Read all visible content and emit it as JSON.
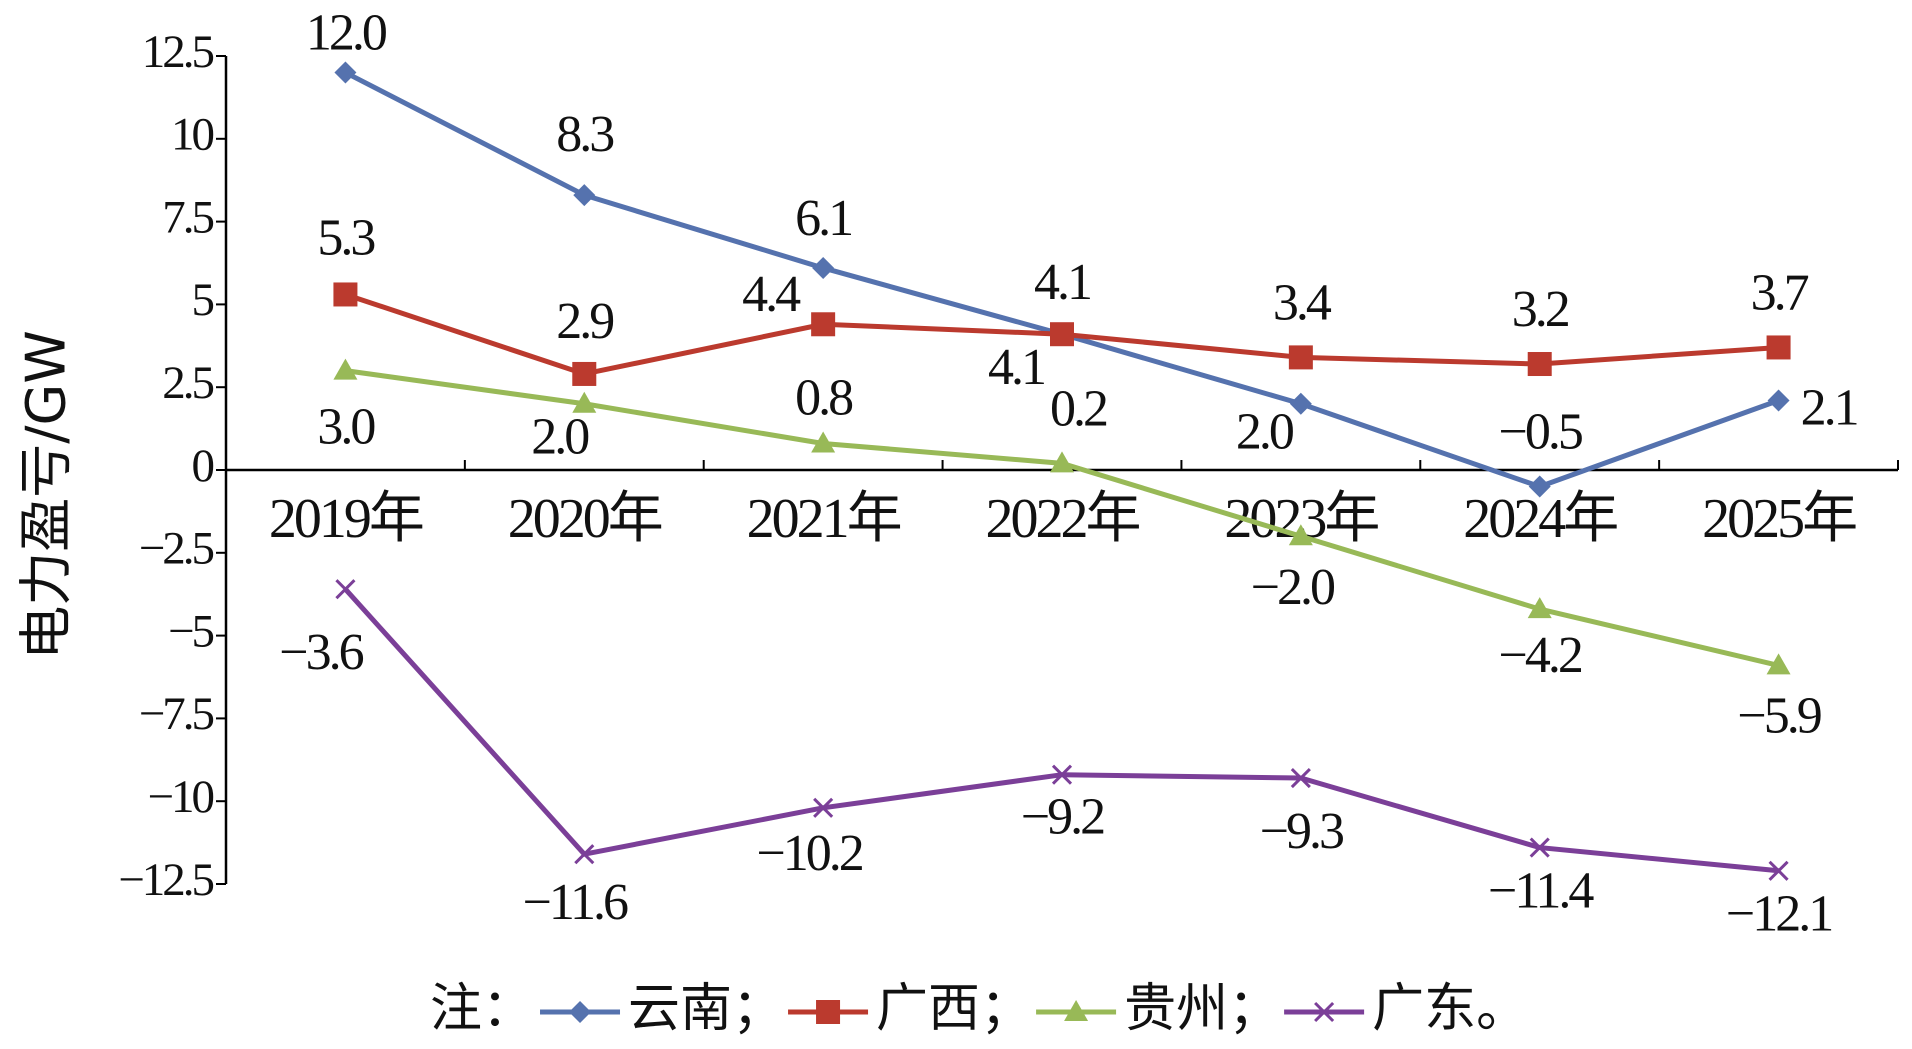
{
  "chart_data": {
    "type": "line",
    "y_label": "电力盈亏/GW",
    "categories": [
      "2019年",
      "2020年",
      "2021年",
      "2022年",
      "2023年",
      "2024年",
      "2025年"
    ],
    "series": [
      {
        "name": "云南",
        "color": "#5572ae",
        "marker": "diamond",
        "values": [
          12.0,
          8.3,
          6.1,
          4.1,
          2.0,
          -0.5,
          2.1
        ],
        "value_labels": [
          "12.0",
          "8.3",
          "6.1",
          "4.1",
          "2.0",
          "−0.5",
          "2.1"
        ]
      },
      {
        "name": "广西",
        "color": "#bb3a2e",
        "marker": "square",
        "values": [
          5.3,
          2.9,
          4.4,
          4.1,
          3.4,
          3.2,
          3.7
        ],
        "value_labels": [
          "5.3",
          "2.9",
          "4.4",
          "4.1",
          "3.4",
          "3.2",
          "3.7"
        ]
      },
      {
        "name": "贵州",
        "color": "#98b957",
        "marker": "triangle",
        "values": [
          3.0,
          2.0,
          0.8,
          0.2,
          -2.0,
          -4.2,
          -5.9
        ],
        "value_labels": [
          "3.0",
          "2.0",
          "0.8",
          "0.2",
          "−2.0",
          "−4.2",
          "−5.9"
        ]
      },
      {
        "name": "广东",
        "color": "#7b3f98",
        "marker": "x",
        "values": [
          -3.6,
          -11.6,
          -10.2,
          -9.2,
          -9.3,
          -11.4,
          -12.1
        ],
        "value_labels": [
          "−3.6",
          "−11.6",
          "−10.2",
          "−9.2",
          "−9.3",
          "−11.4",
          "−12.1"
        ]
      }
    ],
    "ylim": [
      -12.5,
      12.5
    ],
    "yticks": [
      {
        "value": -12.5,
        "label": "−12.5"
      },
      {
        "value": -10,
        "label": "−10"
      },
      {
        "value": -7.5,
        "label": "−7.5"
      },
      {
        "value": -5,
        "label": "−5"
      },
      {
        "value": -2.5,
        "label": "−2.5"
      },
      0,
      2.5,
      5,
      7.5,
      10,
      12.5
    ],
    "legend_prefix": "注：",
    "legend_separator": "；",
    "legend_end": "。",
    "grid": false
  }
}
